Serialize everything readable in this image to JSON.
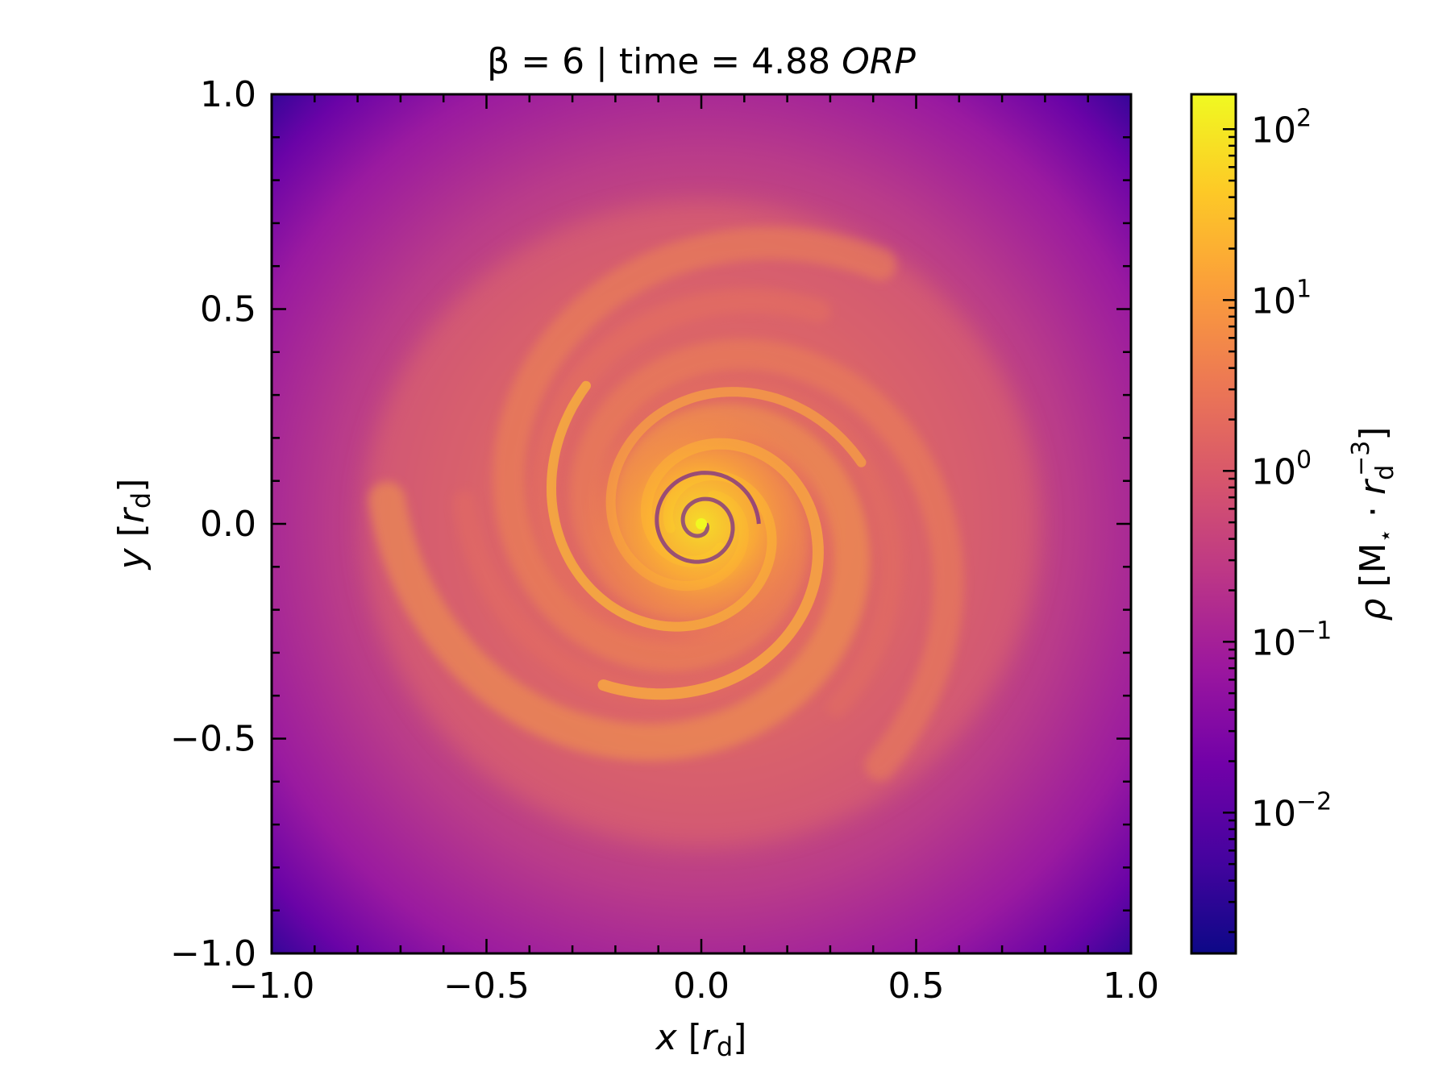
{
  "chart_data": {
    "type": "heatmap",
    "title": {
      "prefix": "β = 6 | time = 4.88 ",
      "suffix_italic": "ORP"
    },
    "xlabel": {
      "var": "x",
      "bracket_open": " [",
      "sym": "r",
      "sub": "d",
      "bracket_close": "]"
    },
    "ylabel": {
      "var": "y",
      "bracket_open": " [",
      "sym": "r",
      "sub": "d",
      "bracket_close": "]"
    },
    "xlim": [
      -1.0,
      1.0
    ],
    "ylim": [
      -1.0,
      1.0
    ],
    "x_ticks": [
      "−1.0",
      "−0.5",
      "0.0",
      "0.5",
      "1.0"
    ],
    "y_ticks": [
      "−1.0",
      "−0.5",
      "0.0",
      "0.5",
      "1.0"
    ],
    "x_tick_values": [
      -1.0,
      -0.5,
      0.0,
      0.5,
      1.0
    ],
    "y_tick_values": [
      -1.0,
      -0.5,
      0.0,
      0.5,
      1.0
    ],
    "colormap": "plasma",
    "colorbar": {
      "scale": "log",
      "range": [
        0.0015,
        160
      ],
      "ticks": [
        {
          "value": 0.01,
          "base": "10",
          "exp": "−2"
        },
        {
          "value": 0.1,
          "base": "10",
          "exp": "−1"
        },
        {
          "value": 1,
          "base": "10",
          "exp": "0"
        },
        {
          "value": 10,
          "base": "10",
          "exp": "1"
        },
        {
          "value": 100,
          "base": "10",
          "exp": "2"
        }
      ],
      "label": {
        "sym": "ρ",
        "open": " [M",
        "star": "⋆",
        "dot": " · ",
        "r": "r",
        "sub": "d",
        "sup": "−3",
        "close": "]"
      }
    },
    "field_description": "gas density map of a spiral-armed disk, brightest at centre",
    "colors": {
      "plasma": [
        "#0d0887",
        "#46039f",
        "#7201a8",
        "#9c179e",
        "#bd3786",
        "#d8576b",
        "#ed7953",
        "#fb9f3a",
        "#fdca26",
        "#f0f921"
      ]
    }
  }
}
